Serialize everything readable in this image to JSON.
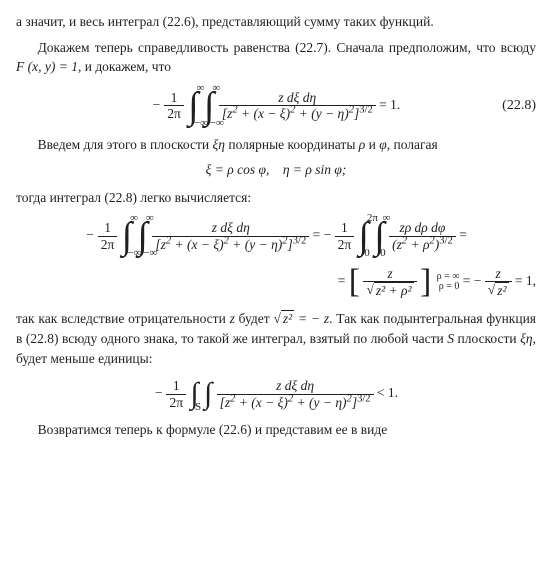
{
  "p1": "а значит, и весь интеграл (22.6), представляющий сумму таких функций.",
  "p2a": "Докажем теперь справедливость равенства (22.7). Сначала предположим, что всюду ",
  "p2b": "F (x, y) = 1",
  "p2c": ", и докажем, что",
  "eq1_label": "(22.8)",
  "eq1": {
    "lead": "− ",
    "coef_num": "1",
    "coef_den": "2π",
    "hi1": "∞",
    "lo1": "−∞",
    "hi2": "∞",
    "lo2": "−∞",
    "frac_num": "z dξ dη",
    "frac_den_a": "[z",
    "frac_den_b": "2",
    "frac_den_c": " + (x − ξ)",
    "frac_den_d": "2",
    "frac_den_e": " + (y − η)",
    "frac_den_f": "2",
    "frac_den_g": "]",
    "frac_den_h": "3/2",
    "rhs": " = 1."
  },
  "p3a": "Введем для этого в плоскости ",
  "p3b": "ξη",
  "p3c": " полярные координаты ",
  "p3d": "ρ",
  "p3e": " и ",
  "p3f": "φ",
  "p3g": ", полагая",
  "polar": {
    "a": "ξ = ρ cos φ,",
    "b": "η = ρ sin φ;"
  },
  "p4": "тогда интеграл (22.8) легко вычисляется:",
  "chain": {
    "lead1": "− ",
    "coef_num": "1",
    "coef_den": "2π",
    "hi1": "∞",
    "lo1": "−∞",
    "hi2": "∞",
    "lo2": "−∞",
    "f1_num": "z dξ dη",
    "f1_den_a": "[z",
    "f1_den_b": "2",
    "f1_den_c": " + (x − ξ)",
    "f1_den_d": "2",
    "f1_den_e": " + (y − η)",
    "f1_den_f": "2",
    "f1_den_g": "]",
    "f1_den_h": "3/2",
    "eq": " = − ",
    "hi3": "2π",
    "lo3": "0",
    "hi4": "∞",
    "lo4": "0",
    "f2_num": "zρ dρ dφ",
    "f2_den_a": "(z",
    "f2_den_b": "2",
    "f2_den_c": " + ρ",
    "f2_den_d": "2",
    "f2_den_e": ")",
    "f2_den_f": "3/2",
    "tail1": " =",
    "line2_lead": "= ",
    "brL": "[",
    "brR": "]",
    "f3_num": "z",
    "f3_den_rad": "z² + ρ²",
    "lim_hi": "ρ = ∞",
    "lim_lo": "ρ = 0",
    "mid": " = − ",
    "f4_num": "z",
    "f4_den_rad": "z²",
    "tail2": " = 1,"
  },
  "p5a": "так как вследствие отрицательности ",
  "p5b": "z",
  "p5c": " будет ",
  "p5d_rad": "z²",
  "p5e": " = − z",
  "p5f": ". Так как подынтегральная функция в (22.8) всюду одного знака, то такой же интеграл, взятый по любой части ",
  "p5g": "S",
  "p5h": " плоскости ",
  "p5i": "ξη",
  "p5j": ", будет меньше единицы:",
  "eq3": {
    "lead": "− ",
    "coef_num": "1",
    "coef_den": "2π",
    "region": "S",
    "f_num": "z dξ dη",
    "f_den_a": "[z",
    "f_den_b": "2",
    "f_den_c": " + (x − ξ)",
    "f_den_d": "2",
    "f_den_e": " + (y − η)",
    "f_den_f": "2",
    "f_den_g": "]",
    "f_den_h": "3/2",
    "rhs": " < 1."
  },
  "p6": "Возвратимся теперь к формуле (22.6) и представим ее в виде"
}
